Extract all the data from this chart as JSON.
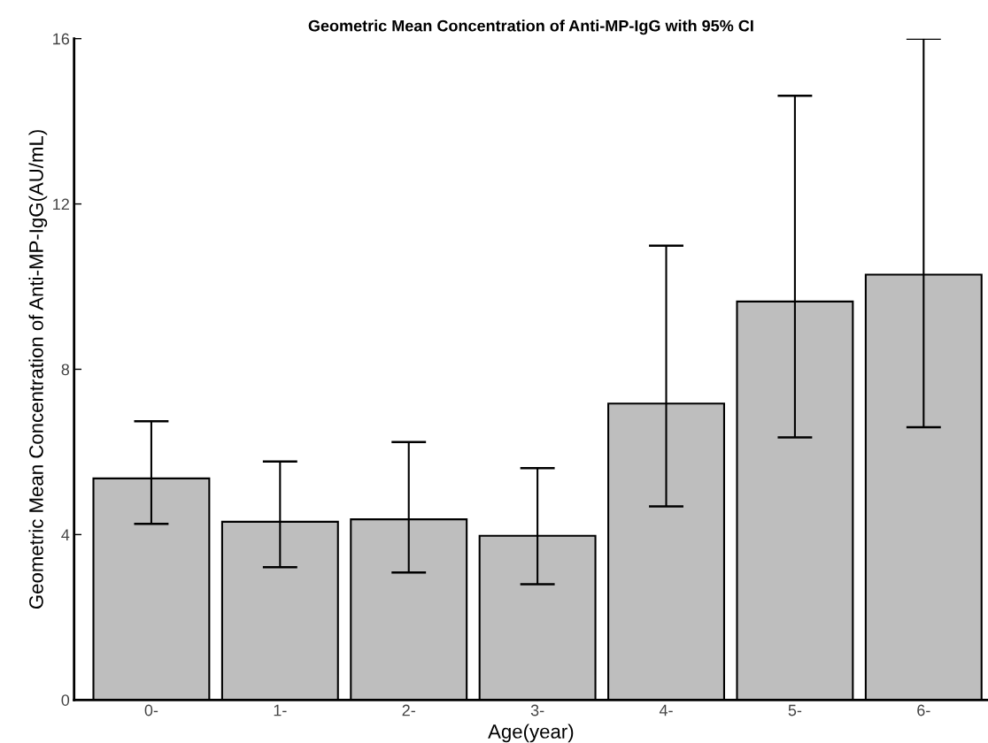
{
  "chart_data": {
    "type": "bar",
    "title": "Geometric Mean Concentration of Anti-MP-IgG with 95% CI",
    "xlabel": "Age(year)",
    "ylabel": "Geometric Mean Concentration of Anti-MP-IgG(AU/mL)",
    "categories": [
      "0-",
      "1-",
      "2-",
      "3-",
      "4-",
      "5-",
      "6-"
    ],
    "values": [
      5.36,
      4.31,
      4.37,
      3.97,
      7.17,
      9.64,
      10.29
    ],
    "errors": [
      [
        4.26,
        6.74
      ],
      [
        3.21,
        5.77
      ],
      [
        3.08,
        6.24
      ],
      [
        2.8,
        5.61
      ],
      [
        4.68,
        10.99
      ],
      [
        6.35,
        14.62
      ],
      [
        6.6,
        16
      ]
    ],
    "color": "#bebebe",
    "ylim": [
      0,
      16
    ],
    "yticks": [
      0,
      4,
      8,
      12,
      16
    ],
    "grid": false,
    "legend": false
  }
}
